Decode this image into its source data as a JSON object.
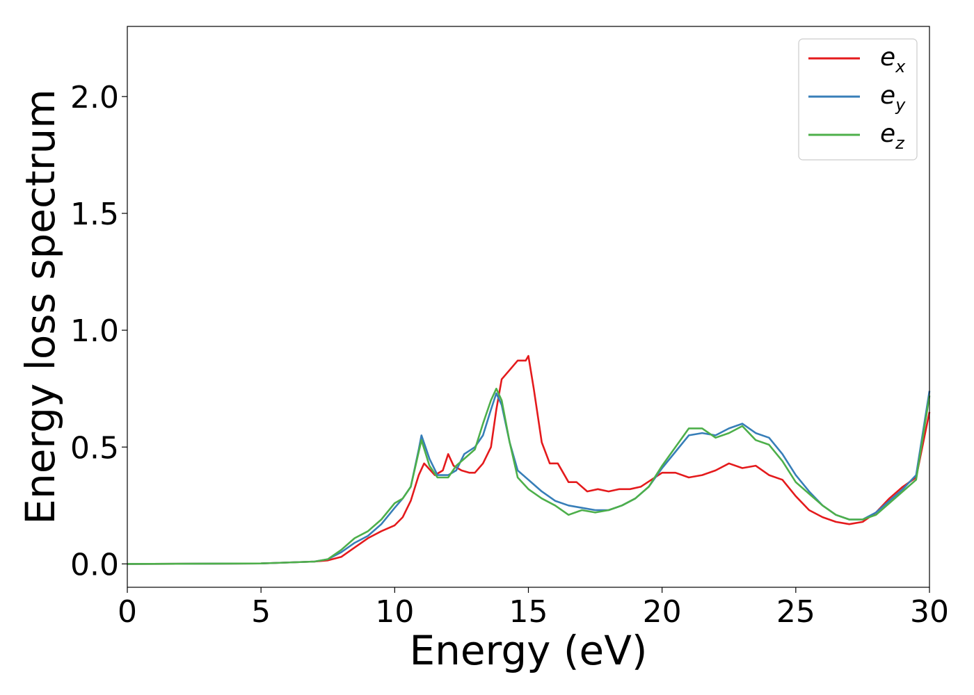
{
  "chart_data": {
    "type": "line",
    "title": "",
    "xlabel": "Energy (eV)",
    "ylabel": "Energy loss spectrum",
    "xlim": [
      0,
      30
    ],
    "ylim": [
      -0.1,
      2.3
    ],
    "xticks": [
      0,
      5,
      10,
      15,
      20,
      25,
      30
    ],
    "xtick_labels": [
      "0",
      "5",
      "10",
      "15",
      "20",
      "25",
      "30"
    ],
    "yticks": [
      0.0,
      0.5,
      1.0,
      1.5,
      2.0
    ],
    "ytick_labels": [
      "0.0",
      "0.5",
      "1.0",
      "1.5",
      "2.0"
    ],
    "grid": false,
    "legend": {
      "placement": "top-right",
      "entries": [
        {
          "base": "e",
          "sub": "x",
          "color": "#e41a1c"
        },
        {
          "base": "e",
          "sub": "y",
          "color": "#377eb8"
        },
        {
          "base": "e",
          "sub": "z",
          "color": "#4daf4a"
        }
      ]
    },
    "series": [
      {
        "color": "#e41a1c",
        "x": [
          0,
          5,
          7,
          7.5,
          8,
          8.5,
          9,
          9.5,
          10,
          10.3,
          10.6,
          10.9,
          11.1,
          11.5,
          11.8,
          12.0,
          12.2,
          12.5,
          12.8,
          13.0,
          13.3,
          13.6,
          13.8,
          14.0,
          14.3,
          14.6,
          14.9,
          15.0,
          15.2,
          15.5,
          15.8,
          16.1,
          16.5,
          16.8,
          17.2,
          17.6,
          18.0,
          18.4,
          18.8,
          19.2,
          19.6,
          20.0,
          20.5,
          21.0,
          21.5,
          22.0,
          22.5,
          23.0,
          23.5,
          24.0,
          24.5,
          25.0,
          25.5,
          26.0,
          26.5,
          27.0,
          27.5,
          28.0,
          28.5,
          29.0,
          29.5,
          30.0
        ],
        "y": [
          0.0,
          0.002,
          0.01,
          0.015,
          0.03,
          0.07,
          0.11,
          0.14,
          0.165,
          0.2,
          0.27,
          0.38,
          0.43,
          0.38,
          0.4,
          0.47,
          0.42,
          0.4,
          0.39,
          0.39,
          0.43,
          0.5,
          0.66,
          0.79,
          0.83,
          0.87,
          0.87,
          0.89,
          0.75,
          0.52,
          0.43,
          0.43,
          0.35,
          0.35,
          0.31,
          0.32,
          0.31,
          0.32,
          0.32,
          0.33,
          0.36,
          0.39,
          0.39,
          0.37,
          0.38,
          0.4,
          0.43,
          0.41,
          0.42,
          0.38,
          0.36,
          0.29,
          0.23,
          0.2,
          0.18,
          0.17,
          0.18,
          0.22,
          0.28,
          0.33,
          0.37,
          0.65
        ]
      },
      {
        "color": "#377eb8",
        "x": [
          0,
          5,
          7,
          7.5,
          8,
          8.5,
          9,
          9.5,
          10,
          10.3,
          10.6,
          10.9,
          11.0,
          11.3,
          11.6,
          12.0,
          12.3,
          12.6,
          13.0,
          13.3,
          13.6,
          13.8,
          14.0,
          14.3,
          14.6,
          15.0,
          15.5,
          16.0,
          16.5,
          17.0,
          17.5,
          18.0,
          18.5,
          19.0,
          19.5,
          20.0,
          20.5,
          21.0,
          21.5,
          22.0,
          22.5,
          23.0,
          23.5,
          24.0,
          24.5,
          25.0,
          25.5,
          26.0,
          26.5,
          27.0,
          27.5,
          28.0,
          28.5,
          29.0,
          29.5,
          30.0
        ],
        "y": [
          0.0,
          0.002,
          0.01,
          0.02,
          0.05,
          0.09,
          0.12,
          0.17,
          0.24,
          0.28,
          0.33,
          0.49,
          0.55,
          0.45,
          0.38,
          0.38,
          0.4,
          0.47,
          0.5,
          0.55,
          0.66,
          0.73,
          0.68,
          0.52,
          0.4,
          0.36,
          0.31,
          0.27,
          0.25,
          0.24,
          0.23,
          0.23,
          0.25,
          0.28,
          0.33,
          0.41,
          0.48,
          0.55,
          0.56,
          0.55,
          0.58,
          0.6,
          0.56,
          0.54,
          0.47,
          0.38,
          0.31,
          0.25,
          0.21,
          0.19,
          0.19,
          0.22,
          0.27,
          0.32,
          0.38,
          0.74
        ]
      },
      {
        "color": "#4daf4a",
        "x": [
          0,
          5,
          7,
          7.5,
          8,
          8.5,
          9,
          9.5,
          10,
          10.3,
          10.6,
          10.9,
          11.0,
          11.3,
          11.6,
          12.0,
          12.3,
          12.6,
          13.0,
          13.3,
          13.6,
          13.8,
          14.0,
          14.3,
          14.6,
          15.0,
          15.5,
          16.0,
          16.5,
          17.0,
          17.5,
          18.0,
          18.5,
          19.0,
          19.5,
          20.0,
          20.5,
          21.0,
          21.5,
          22.0,
          22.5,
          23.0,
          23.5,
          24.0,
          24.5,
          25.0,
          25.5,
          26.0,
          26.5,
          27.0,
          27.5,
          28.0,
          28.5,
          29.0,
          29.5,
          30.0
        ],
        "y": [
          0.0,
          0.002,
          0.01,
          0.02,
          0.06,
          0.11,
          0.14,
          0.19,
          0.26,
          0.28,
          0.33,
          0.48,
          0.53,
          0.42,
          0.37,
          0.37,
          0.42,
          0.45,
          0.49,
          0.6,
          0.7,
          0.75,
          0.7,
          0.52,
          0.37,
          0.32,
          0.28,
          0.25,
          0.21,
          0.23,
          0.22,
          0.23,
          0.25,
          0.28,
          0.33,
          0.42,
          0.5,
          0.58,
          0.58,
          0.54,
          0.56,
          0.59,
          0.53,
          0.51,
          0.44,
          0.35,
          0.3,
          0.25,
          0.21,
          0.19,
          0.19,
          0.21,
          0.26,
          0.31,
          0.36,
          0.72
        ]
      }
    ]
  }
}
